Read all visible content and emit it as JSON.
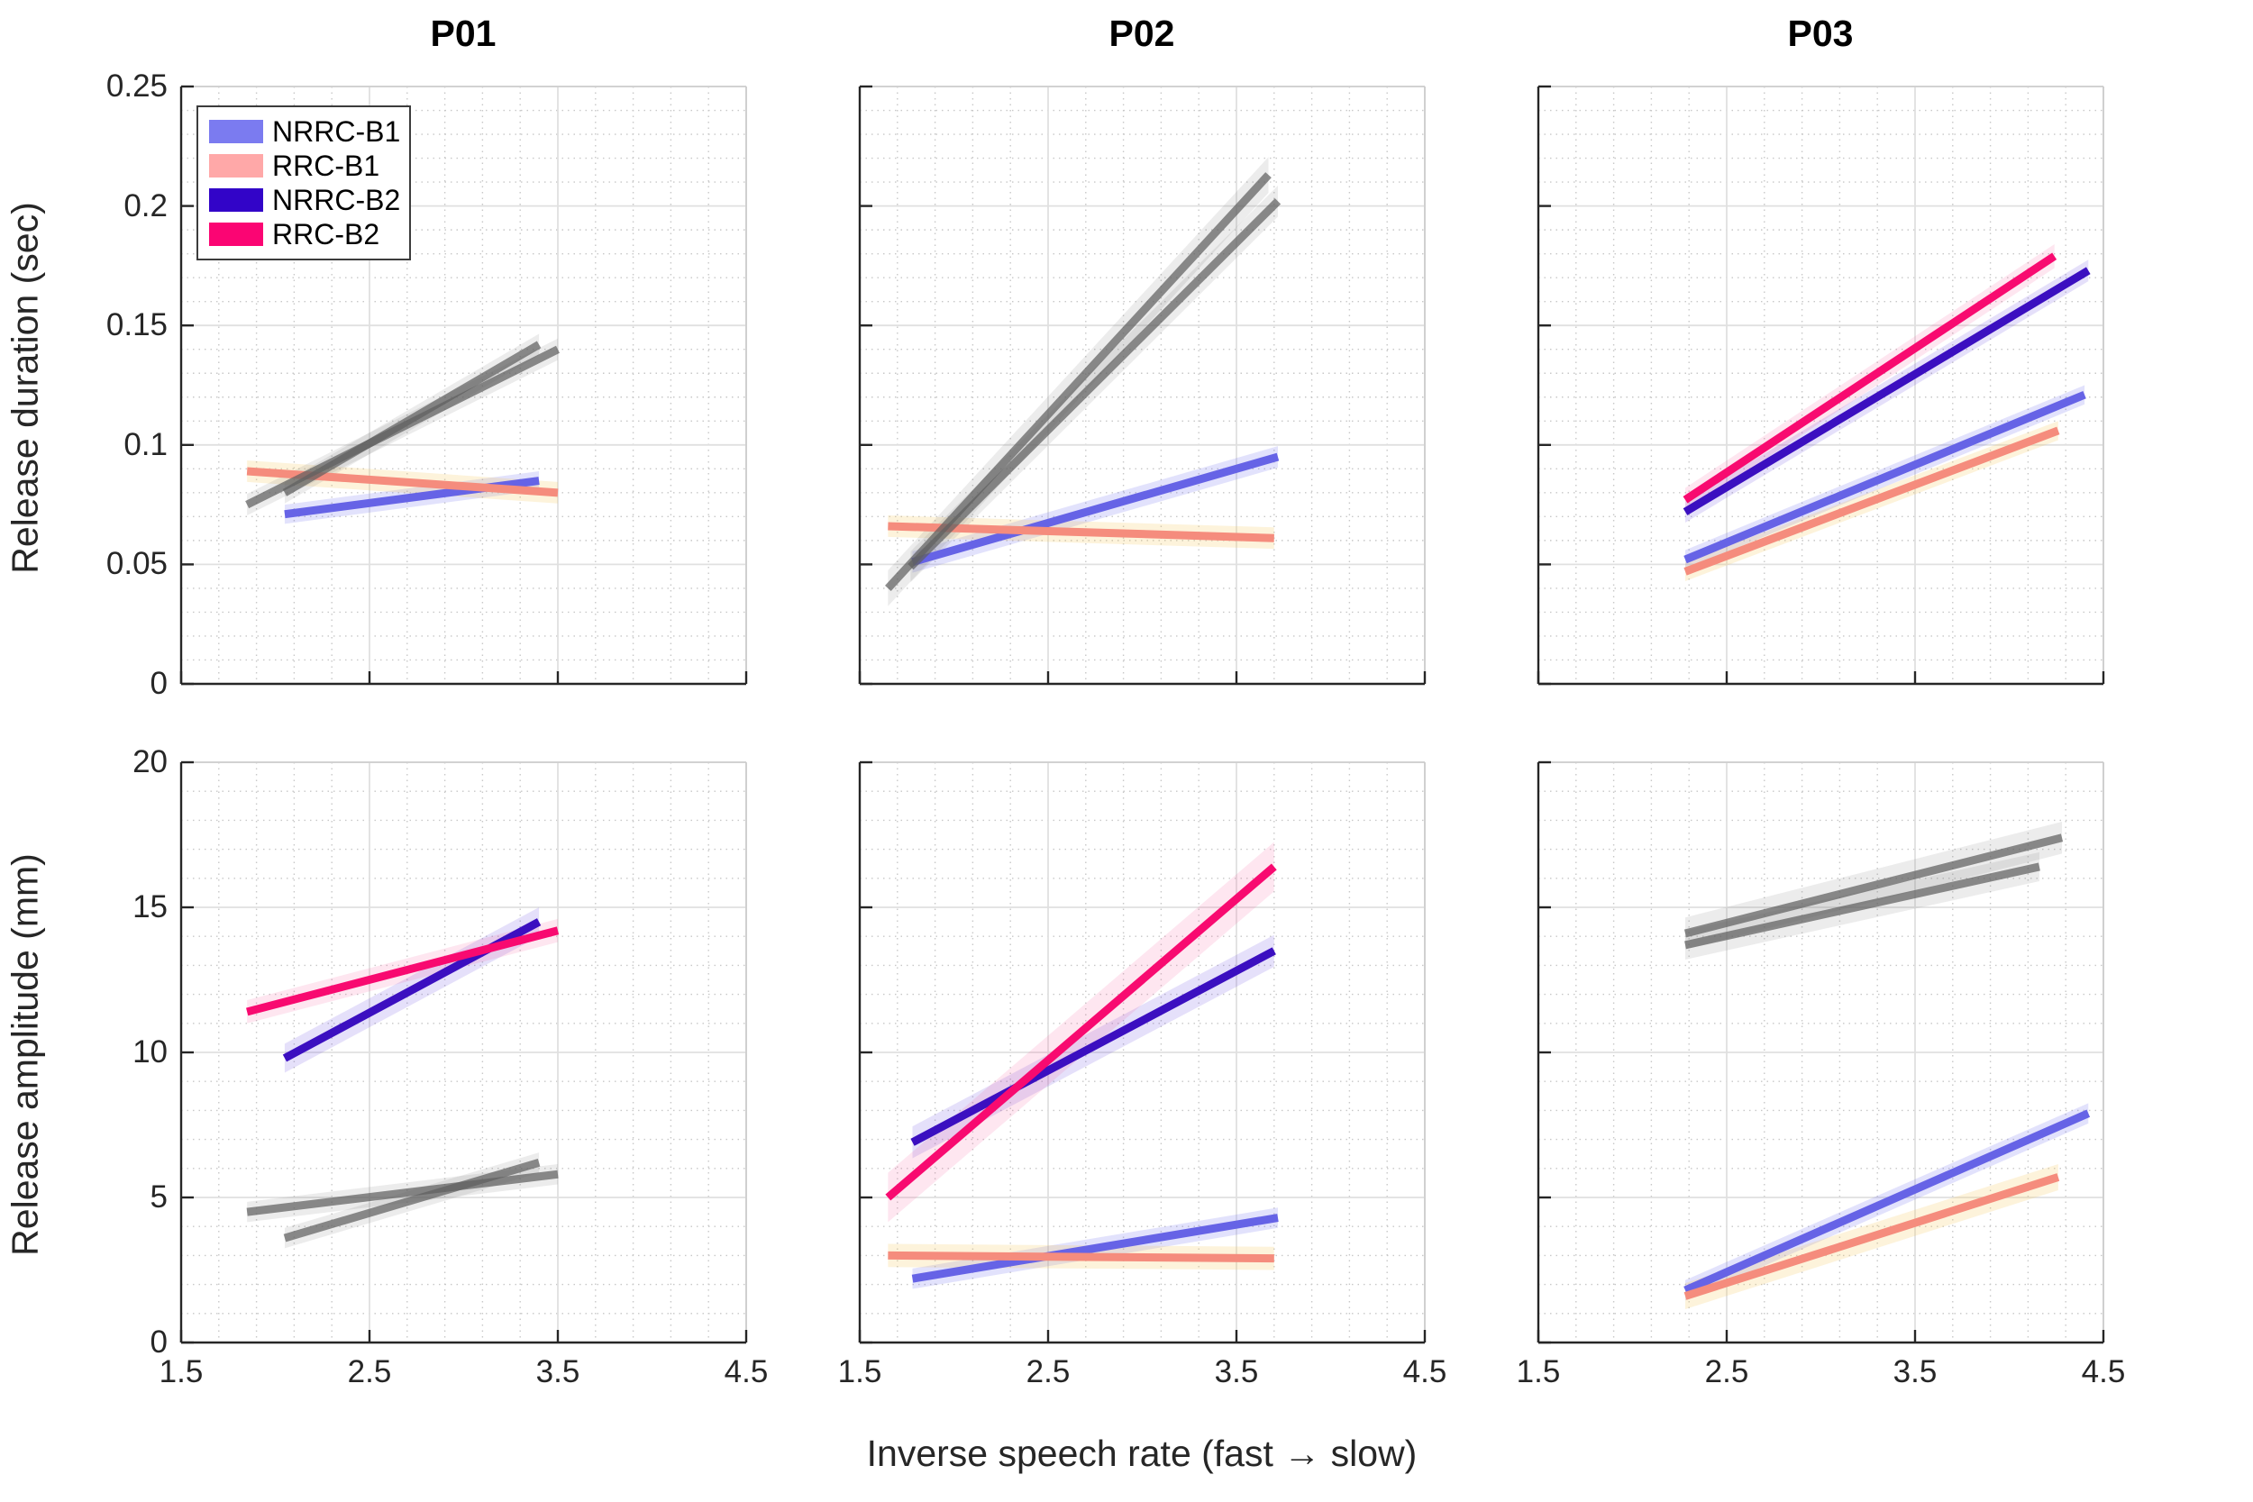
{
  "chart_data": {
    "type": "line",
    "description": "Linear fits with confidence bands, 2 rows x 3 participant columns",
    "x_label": "Inverse speech rate (fast → slow)",
    "x_lim": [
      1.5,
      4.5
    ],
    "x_ticks": [
      1.5,
      2.5,
      3.5,
      4.5
    ],
    "x_tick_labels": [
      "1.5",
      "2.5",
      "3.5",
      "4.5"
    ],
    "x_minor_step": 0.2,
    "grid": "major solid + dotted minor",
    "legend_position": "top-left of first panel",
    "columns": [
      "P01",
      "P02",
      "P03"
    ],
    "rows": [
      {
        "y_label": "Release duration (sec)",
        "y_lim": [
          0,
          0.25
        ],
        "y_ticks": [
          0,
          0.05,
          0.1,
          0.15,
          0.2,
          0.25
        ],
        "y_tick_labels": [
          "0",
          "0.05",
          "0.1",
          "0.15",
          "0.2",
          "0.25"
        ],
        "y_minor_step": 0.01
      },
      {
        "y_label": "Release amplitude (mm)",
        "y_lim": [
          0,
          20
        ],
        "y_ticks": [
          0,
          5,
          10,
          15,
          20
        ],
        "y_tick_labels": [
          "0",
          "5",
          "10",
          "15",
          "20"
        ],
        "y_minor_step": 1
      }
    ],
    "legend": [
      {
        "label": "NRRC-B1",
        "swatch": "#7b7bf0"
      },
      {
        "label": "RRC-B1",
        "swatch": "#ffa8a8"
      },
      {
        "label": "NRRC-B2",
        "swatch": "#3204c8"
      },
      {
        "label": "RRC-B2",
        "swatch": "#fb0573"
      }
    ],
    "colors": {
      "nrrc_b1": {
        "line": "#6663e6",
        "band": "rgba(110,108,238,0.20)"
      },
      "rrc_b1": {
        "line": "#f58c7d",
        "band": "rgba(247,200,90,0.22)"
      },
      "nrrc_b2": {
        "line": "#3b0fc0",
        "band": "rgba(95,60,225,0.16)"
      },
      "rrc_b2": {
        "line": "#f80a70",
        "band": "rgba(250,80,150,0.14)"
      },
      "gray": {
        "line": "rgba(95,95,95,0.72)",
        "band": "rgba(130,130,130,0.15)"
      }
    },
    "panels": [
      {
        "row": 0,
        "col": 0,
        "title": "P01",
        "series": [
          {
            "name": "NRRC-B1",
            "color": "nrrc_b1",
            "gray": false,
            "x": [
              2.05,
              3.4
            ],
            "y": [
              0.071,
              0.085
            ],
            "ci": 0.004
          },
          {
            "name": "RRC-B1",
            "color": "rrc_b1",
            "gray": false,
            "x": [
              1.85,
              3.5
            ],
            "y": [
              0.089,
              0.08
            ],
            "ci": 0.0045
          },
          {
            "name": "NRRC-B2",
            "color": "nrrc_b2",
            "gray": true,
            "x": [
              2.05,
              3.4
            ],
            "y": [
              0.08,
              0.142
            ],
            "ci": 0.0045
          },
          {
            "name": "RRC-B2",
            "color": "rrc_b2",
            "gray": true,
            "x": [
              1.85,
              3.5
            ],
            "y": [
              0.075,
              0.14
            ],
            "ci": 0.0045
          }
        ]
      },
      {
        "row": 0,
        "col": 1,
        "title": "P02",
        "series": [
          {
            "name": "NRRC-B1",
            "color": "nrrc_b1",
            "gray": false,
            "x": [
              1.78,
              3.72
            ],
            "y": [
              0.051,
              0.095
            ],
            "ci": 0.0045
          },
          {
            "name": "RRC-B1",
            "color": "rrc_b1",
            "gray": false,
            "x": [
              1.65,
              3.7
            ],
            "y": [
              0.066,
              0.061
            ],
            "ci": 0.0045
          },
          {
            "name": "NRRC-B2",
            "color": "nrrc_b2",
            "gray": true,
            "x": [
              1.77,
              3.72
            ],
            "y": [
              0.049,
              0.202
            ],
            "ci": 0.0065
          },
          {
            "name": "RRC-B2",
            "color": "rrc_b2",
            "gray": true,
            "x": [
              1.65,
              3.67
            ],
            "y": [
              0.04,
              0.213
            ],
            "ci": 0.0075
          }
        ]
      },
      {
        "row": 0,
        "col": 2,
        "title": "P03",
        "series": [
          {
            "name": "NRRC-B1",
            "color": "nrrc_b1",
            "gray": false,
            "x": [
              2.28,
              4.4
            ],
            "y": [
              0.052,
              0.121
            ],
            "ci": 0.004
          },
          {
            "name": "RRC-B1",
            "color": "rrc_b1",
            "gray": false,
            "x": [
              2.28,
              4.26
            ],
            "y": [
              0.047,
              0.106
            ],
            "ci": 0.004
          },
          {
            "name": "NRRC-B2",
            "color": "nrrc_b2",
            "gray": false,
            "x": [
              2.28,
              4.42
            ],
            "y": [
              0.072,
              0.173
            ],
            "ci": 0.0045
          },
          {
            "name": "RRC-B2",
            "color": "rrc_b2",
            "gray": false,
            "x": [
              2.28,
              4.24
            ],
            "y": [
              0.077,
              0.179
            ],
            "ci": 0.005
          }
        ]
      },
      {
        "row": 1,
        "col": 0,
        "title": "P01",
        "series": [
          {
            "name": "NRRC-B1",
            "color": "nrrc_b1",
            "gray": true,
            "x": [
              2.05,
              3.4
            ],
            "y": [
              3.6,
              6.2
            ],
            "ci": 0.35
          },
          {
            "name": "RRC-B1",
            "color": "rrc_b1",
            "gray": true,
            "x": [
              1.85,
              3.5
            ],
            "y": [
              4.5,
              5.8
            ],
            "ci": 0.35
          },
          {
            "name": "NRRC-B2",
            "color": "nrrc_b2",
            "gray": false,
            "x": [
              2.05,
              3.4
            ],
            "y": [
              9.8,
              14.5
            ],
            "ci": 0.5
          },
          {
            "name": "RRC-B2",
            "color": "rrc_b2",
            "gray": false,
            "x": [
              1.85,
              3.5
            ],
            "y": [
              11.4,
              14.2
            ],
            "ci": 0.4
          }
        ]
      },
      {
        "row": 1,
        "col": 1,
        "title": "P02",
        "series": [
          {
            "name": "NRRC-B1",
            "color": "nrrc_b1",
            "gray": false,
            "x": [
              1.78,
              3.72
            ],
            "y": [
              2.2,
              4.3
            ],
            "ci": 0.35
          },
          {
            "name": "RRC-B1",
            "color": "rrc_b1",
            "gray": false,
            "x": [
              1.65,
              3.7
            ],
            "y": [
              3.0,
              2.9
            ],
            "ci": 0.4
          },
          {
            "name": "NRRC-B2",
            "color": "nrrc_b2",
            "gray": false,
            "x": [
              1.78,
              3.7
            ],
            "y": [
              6.9,
              13.5
            ],
            "ci": 0.55
          },
          {
            "name": "RRC-B2",
            "color": "rrc_b2",
            "gray": false,
            "x": [
              1.65,
              3.7
            ],
            "y": [
              5.0,
              16.4
            ],
            "ci": 0.85
          }
        ]
      },
      {
        "row": 1,
        "col": 2,
        "title": "P03",
        "series": [
          {
            "name": "NRRC-B1",
            "color": "nrrc_b1",
            "gray": false,
            "x": [
              2.28,
              4.42
            ],
            "y": [
              1.8,
              7.9
            ],
            "ci": 0.35
          },
          {
            "name": "RRC-B1",
            "color": "rrc_b1",
            "gray": false,
            "x": [
              2.28,
              4.26
            ],
            "y": [
              1.6,
              5.7
            ],
            "ci": 0.45
          },
          {
            "name": "NRRC-B2",
            "color": "nrrc_b2",
            "gray": true,
            "x": [
              2.28,
              4.28
            ],
            "y": [
              14.1,
              17.4
            ],
            "ci": 0.55
          },
          {
            "name": "RRC-B2",
            "color": "rrc_b2",
            "gray": true,
            "x": [
              2.28,
              4.16
            ],
            "y": [
              13.7,
              16.4
            ],
            "ci": 0.5
          }
        ]
      }
    ]
  }
}
